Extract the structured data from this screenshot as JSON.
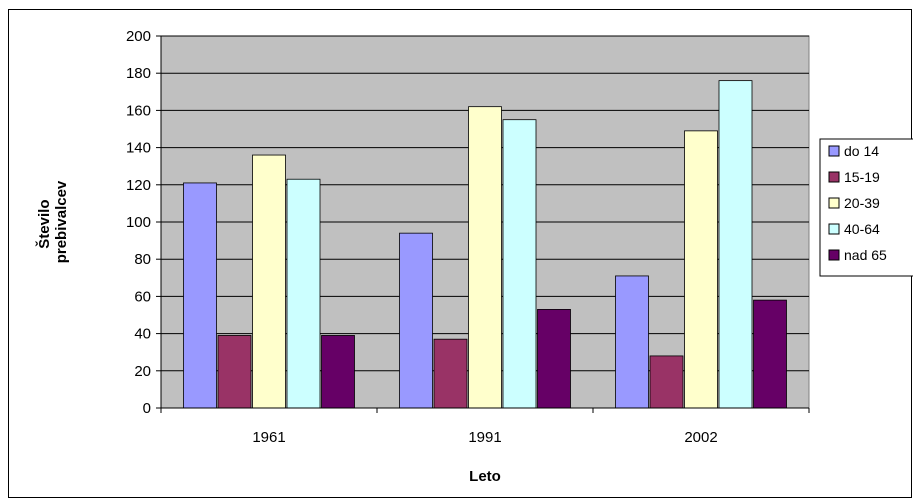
{
  "chart_data": {
    "type": "bar",
    "categories": [
      "1961",
      "1991",
      "2002"
    ],
    "series": [
      {
        "name": "do 14",
        "values": [
          121,
          94,
          71
        ],
        "color": "#9999ff"
      },
      {
        "name": "15-19",
        "values": [
          39,
          37,
          28
        ],
        "color": "#993366"
      },
      {
        "name": "20-39",
        "values": [
          136,
          162,
          149
        ],
        "color": "#ffffcc"
      },
      {
        "name": "40-64",
        "values": [
          123,
          155,
          176
        ],
        "color": "#ccffff"
      },
      {
        "name": "nad 65",
        "values": [
          39,
          53,
          58
        ],
        "color": "#660066"
      }
    ],
    "title": "",
    "xlabel": "Leto",
    "ylabel_lines": [
      "Število",
      "prebivalcev"
    ],
    "ylim": [
      0,
      200
    ],
    "yticks": [
      0,
      20,
      40,
      60,
      80,
      100,
      120,
      140,
      160,
      180,
      200
    ],
    "grid": true,
    "plot_background": "#c0c0c0",
    "legend_position": "right"
  }
}
